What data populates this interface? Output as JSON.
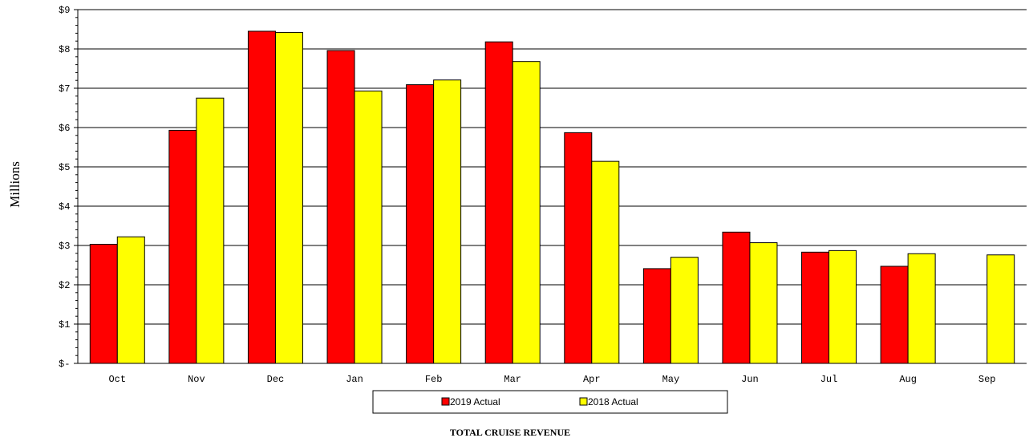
{
  "chart_data": {
    "type": "bar",
    "title": "",
    "caption": "TOTAL CRUISE REVENUE",
    "xlabel": "",
    "ylabel": "Millions",
    "ylim": [
      0,
      9
    ],
    "yticks": [
      {
        "value": 0,
        "label": "$-"
      },
      {
        "value": 1,
        "label": "$1"
      },
      {
        "value": 2,
        "label": "$2"
      },
      {
        "value": 3,
        "label": "$3"
      },
      {
        "value": 4,
        "label": "$4"
      },
      {
        "value": 5,
        "label": "$5"
      },
      {
        "value": 6,
        "label": "$6"
      },
      {
        "value": 7,
        "label": "$7"
      },
      {
        "value": 8,
        "label": "$8"
      },
      {
        "value": 9,
        "label": "$9"
      }
    ],
    "grid": true,
    "legend_position": "bottom",
    "categories": [
      "Oct",
      "Nov",
      "Dec",
      "Jan",
      "Feb",
      "Mar",
      "Apr",
      "May",
      "Jun",
      "Jul",
      "Aug",
      "Sep"
    ],
    "series": [
      {
        "name": "2019 Actual",
        "color": "#ff0000",
        "values": [
          3.03,
          5.93,
          8.45,
          7.96,
          7.09,
          8.18,
          5.87,
          2.41,
          3.34,
          2.83,
          2.47,
          null
        ]
      },
      {
        "name": "2018 Actual",
        "color": "#ffff00",
        "values": [
          3.22,
          6.75,
          8.42,
          6.93,
          7.21,
          7.68,
          5.14,
          2.7,
          3.07,
          2.87,
          2.79,
          2.76
        ]
      }
    ]
  }
}
